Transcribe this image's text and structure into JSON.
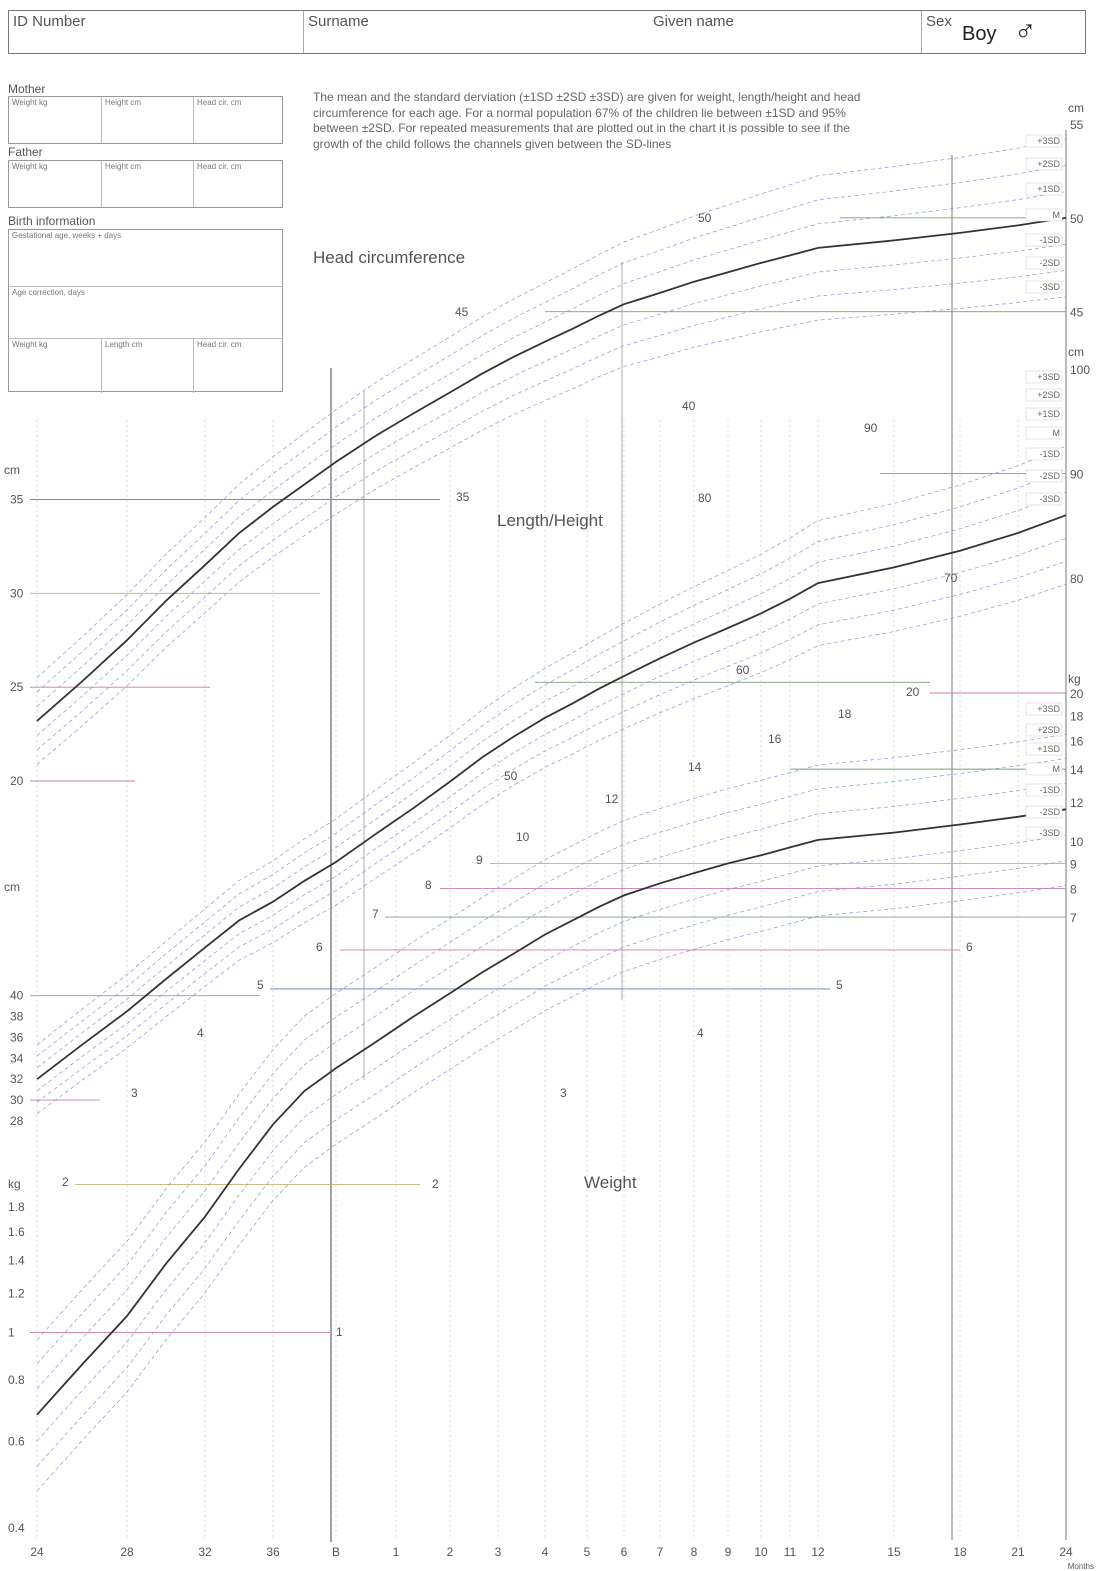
{
  "header": {
    "id_label": "ID Number",
    "surname_label": "Surname",
    "given_label": "Given name",
    "sex_label": "Sex",
    "sex_value": "Boy",
    "sex_symbol": "♂"
  },
  "parents": {
    "mother_title": "Mother",
    "father_title": "Father",
    "weight_label": "Weight kg",
    "height_label": "Height cm",
    "head_label": "Head cir. cm"
  },
  "birth": {
    "title": "Birth information",
    "gestational_label": "Gestational age, weeks + days",
    "age_correction_label": "Age correction, days",
    "weight_label": "Weight kg",
    "length_label": "Length cm",
    "head_label": "Head cir. cm"
  },
  "description": "The mean and the standard derviation (±1SD ±2SD ±3SD) are given for weight, length/height and head circumference for each age. For a normal population 67% of the children lie between ±1SD and 95% between ±2SD. For repeated measurements that are plotted out in the chart it is possible to see if the growth of the child follows the channels given between the SD-lines",
  "chart_data": {
    "type": "line",
    "x_axis": {
      "tick_labels": [
        "24",
        "28",
        "32",
        "36",
        "B",
        "1",
        "2",
        "3",
        "4",
        "5",
        "6",
        "7",
        "8",
        "9",
        "10",
        "11",
        "12",
        "15",
        "18",
        "21",
        "24"
      ],
      "unit_label": "Months"
    },
    "sd_labels": [
      "+3SD",
      "+2SD",
      "+1SD",
      "M",
      "-1SD",
      "-2SD",
      "-3SD"
    ],
    "panels": [
      {
        "title": "Head circumference",
        "unit": "cm",
        "right_ticks": [
          45,
          50,
          55
        ],
        "left_ticks": [
          20,
          25,
          30,
          35
        ],
        "inner_labels": [
          35,
          40,
          45,
          50
        ],
        "median": [
          [
            24,
            23.2
          ],
          [
            26,
            25.3
          ],
          [
            28,
            27.5
          ],
          [
            30,
            29.6
          ],
          [
            32,
            31.5
          ],
          [
            34,
            33.2
          ],
          [
            36,
            34.6
          ],
          [
            38,
            35.8
          ],
          [
            40,
            37.0
          ],
          [
            42,
            38.4
          ],
          [
            44,
            39.6
          ],
          [
            46,
            40.7
          ],
          [
            48,
            41.7
          ],
          [
            50,
            42.6
          ],
          [
            52,
            43.4
          ],
          [
            54,
            44.1
          ],
          [
            56,
            44.8
          ],
          [
            58,
            45.4
          ],
          [
            61,
            46.0
          ],
          [
            64,
            46.6
          ],
          [
            67,
            47.1
          ],
          [
            70,
            47.6
          ],
          [
            73,
            48.0
          ],
          [
            76,
            48.4
          ],
          [
            79,
            48.8
          ],
          [
            82,
            49.2
          ],
          [
            85,
            49.6
          ],
          [
            88,
            50.0
          ]
        ]
      },
      {
        "title": "Length/Height",
        "unit": "cm",
        "right_ticks": [
          80,
          90,
          100
        ],
        "left_ticks": [
          28,
          30,
          32,
          34,
          36,
          38,
          40
        ],
        "inner_labels": [
          50,
          60,
          70,
          80,
          90
        ],
        "median": [
          [
            24,
            32.0
          ],
          [
            26,
            35.3
          ],
          [
            28,
            38.5
          ],
          [
            30,
            41.6
          ],
          [
            32,
            44.6
          ],
          [
            34,
            47.2
          ],
          [
            36,
            49.0
          ],
          [
            38,
            51.0
          ],
          [
            40,
            52.8
          ],
          [
            42,
            55.5
          ],
          [
            44,
            58.0
          ],
          [
            46,
            60.5
          ],
          [
            48,
            62.8
          ],
          [
            50,
            64.8
          ],
          [
            52,
            66.6
          ],
          [
            54,
            68.0
          ],
          [
            56,
            69.4
          ],
          [
            58,
            70.6
          ],
          [
            61,
            72.3
          ],
          [
            64,
            73.8
          ],
          [
            67,
            75.2
          ],
          [
            70,
            76.6
          ],
          [
            73,
            78.0
          ],
          [
            76,
            79.5
          ],
          [
            79,
            81.0
          ],
          [
            82,
            82.6
          ],
          [
            85,
            84.3
          ],
          [
            88,
            86.0
          ]
        ]
      },
      {
        "title": "Weight",
        "unit": "kg",
        "right_ticks": [
          5,
          6,
          7,
          8,
          9,
          10,
          12,
          14,
          16,
          18,
          20
        ],
        "left_ticks": [
          0.4,
          0.6,
          0.8,
          1,
          1.2,
          1.4,
          1.6,
          1.8,
          2
        ],
        "inner_labels": [
          1,
          2,
          3,
          4,
          5,
          6,
          7,
          8,
          9,
          10,
          12,
          14,
          16,
          18,
          20
        ],
        "median": [
          [
            24,
            0.68
          ],
          [
            26,
            0.86
          ],
          [
            28,
            1.08
          ],
          [
            30,
            1.38
          ],
          [
            32,
            1.72
          ],
          [
            34,
            2.15
          ],
          [
            36,
            2.65
          ],
          [
            38,
            3.1
          ],
          [
            40,
            3.45
          ],
          [
            42,
            3.9
          ],
          [
            44,
            4.4
          ],
          [
            46,
            4.9
          ],
          [
            48,
            5.4
          ],
          [
            50,
            5.9
          ],
          [
            52,
            6.45
          ],
          [
            54,
            6.9
          ],
          [
            56,
            7.35
          ],
          [
            58,
            7.75
          ],
          [
            61,
            8.2
          ],
          [
            64,
            8.6
          ],
          [
            67,
            9.0
          ],
          [
            70,
            9.35
          ],
          [
            73,
            9.7
          ],
          [
            76,
            10.05
          ],
          [
            79,
            10.4
          ],
          [
            82,
            10.8
          ],
          [
            85,
            11.2
          ],
          [
            88,
            11.6
          ]
        ]
      }
    ]
  }
}
